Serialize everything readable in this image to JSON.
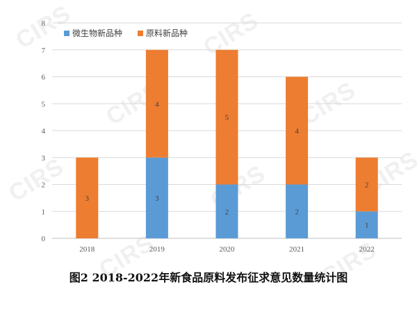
{
  "chart_data": {
    "type": "bar",
    "stacked": true,
    "categories": [
      "2018",
      "2019",
      "2020",
      "2021",
      "2022"
    ],
    "series": [
      {
        "name": "微生物新品种",
        "values": [
          0,
          3,
          2,
          2,
          1
        ],
        "color": "#5B9BD5"
      },
      {
        "name": "原料新品种",
        "values": [
          3,
          4,
          5,
          4,
          2
        ],
        "color": "#ED7D31"
      }
    ],
    "title": "图2 2018-2022年新食品原料发布征求意见数量统计图",
    "ylim": [
      0,
      8
    ],
    "yticks": [
      0,
      1,
      2,
      3,
      4,
      5,
      6,
      7,
      8
    ],
    "grid": true,
    "legend": "top-left"
  },
  "watermark": "CIRS"
}
